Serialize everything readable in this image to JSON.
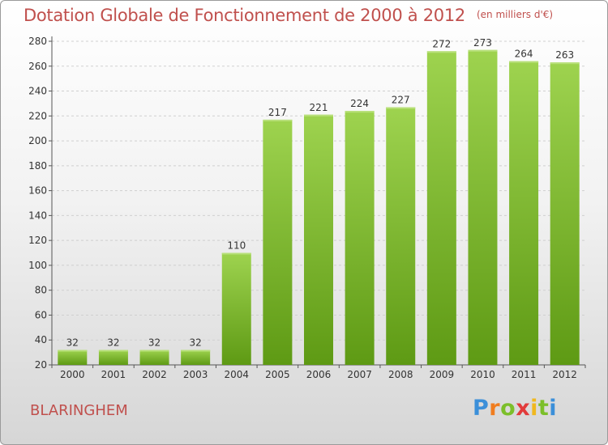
{
  "title": "Dotation Globale de Fonctionnement de 2000 à 2012",
  "unit_label": "(en milliers d'€)",
  "commune": "BLARINGHEM",
  "logo": {
    "letters": [
      "P",
      "r",
      "o",
      "x",
      "i",
      "t",
      "i"
    ],
    "colors": [
      "#3b8fd9",
      "#f07d1f",
      "#7cbf2a",
      "#e23b3b",
      "#f0b81f",
      "#7cbf2a",
      "#3b8fd9"
    ]
  },
  "colors": {
    "bar_top": "#9ed34f",
    "bar_bottom": "#5e9a14",
    "title": "#c0504d"
  },
  "chart_data": {
    "type": "bar",
    "categories": [
      "2000",
      "2001",
      "2002",
      "2003",
      "2004",
      "2005",
      "2006",
      "2007",
      "2008",
      "2009",
      "2010",
      "2011",
      "2012"
    ],
    "values": [
      32,
      32,
      32,
      32,
      110,
      217,
      221,
      224,
      227,
      272,
      273,
      264,
      263
    ],
    "ylim": [
      20,
      280
    ],
    "yticks": [
      20,
      40,
      60,
      80,
      100,
      120,
      140,
      160,
      180,
      200,
      220,
      240,
      260,
      280
    ],
    "grid": true,
    "xlabel": "",
    "ylabel": ""
  }
}
